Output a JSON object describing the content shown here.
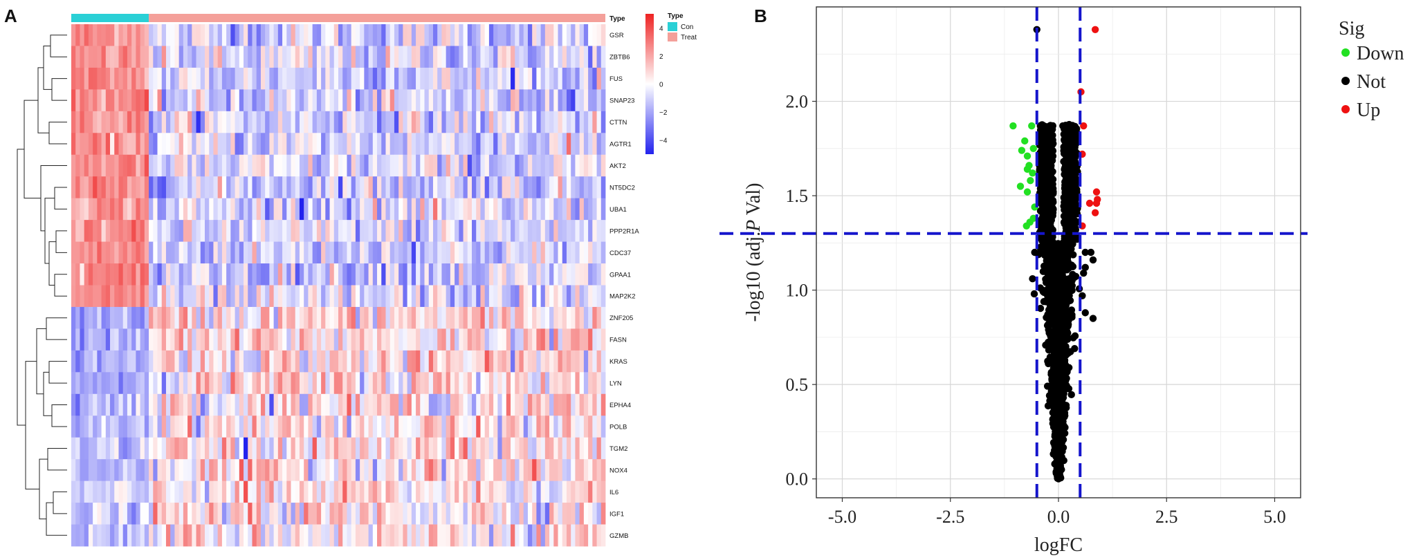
{
  "panel_a_label": "A",
  "panel_b_label": "B",
  "chart_data": [
    {
      "type": "heatmap",
      "annotation_title": "Type",
      "annotation_legend": {
        "title": "Type",
        "items": [
          {
            "label": "Con",
            "color": "#2ad0d6"
          },
          {
            "label": "Treat",
            "color": "#f4a09a"
          }
        ]
      },
      "groups": {
        "Con": 18,
        "Treat": 106
      },
      "rows": [
        "GSR",
        "ZBTB6",
        "FUS",
        "SNAP23",
        "CTTN",
        "AGTR1",
        "AKT2",
        "NT5DC2",
        "UBA1",
        "PPP2R1A",
        "CDC37",
        "GPAA1",
        "MAP2K2",
        "ZNF205",
        "FASN",
        "KRAS",
        "LYN",
        "EPHA4",
        "POLB",
        "TGM2",
        "NOX4",
        "IL6",
        "IGF1",
        "GZMB"
      ],
      "row_con_mean": [
        2.3,
        2.0,
        2.2,
        2.4,
        2.1,
        2.0,
        2.3,
        2.2,
        2.1,
        2.2,
        2.2,
        2.3,
        2.4,
        -1.6,
        -1.7,
        -1.5,
        -1.6,
        -1.3,
        -1.1,
        -1.2,
        -1.3,
        -1.0,
        -1.1,
        -1.2
      ],
      "colorbar": {
        "ticks": [
          4,
          2,
          0,
          -2,
          -4
        ],
        "min": -5,
        "max": 5,
        "high": "#ee2222",
        "mid": "#ffffff",
        "low": "#2222ee"
      }
    },
    {
      "type": "scatter",
      "xlabel": "logFC",
      "ylabel_prefix": "-log10 (adj.",
      "ylabel_italic": "P",
      "ylabel_suffix": " Val)",
      "xlim": [
        -5.6,
        5.6
      ],
      "ylim": [
        -0.1,
        2.5
      ],
      "xticks": [
        -5.0,
        -2.5,
        0.0,
        2.5,
        5.0
      ],
      "xtick_labels": [
        "-5.0",
        "-2.5",
        "0.0",
        "2.5",
        "5.0"
      ],
      "yticks": [
        0.0,
        0.5,
        1.0,
        1.5,
        2.0
      ],
      "ytick_labels": [
        "0.0",
        "0.5",
        "1.0",
        "1.5",
        "2.0"
      ],
      "grid": true,
      "thresholds": {
        "logFC": [
          -0.5,
          0.5
        ],
        "neglog10p": 1.3
      },
      "legend": {
        "title": "Sig",
        "items": [
          {
            "label": "Down",
            "color": "#22e022"
          },
          {
            "label": "Not",
            "color": "#000000"
          },
          {
            "label": "Up",
            "color": "#ee1111"
          }
        ]
      },
      "series": [
        {
          "name": "Down",
          "color": "#22e022",
          "points": [
            [
              -1.05,
              1.87
            ],
            [
              -0.85,
              1.74
            ],
            [
              -0.78,
              1.79
            ],
            [
              -0.72,
              1.71
            ],
            [
              -0.62,
              1.87
            ],
            [
              -0.68,
              1.66
            ],
            [
              -0.72,
              1.64
            ],
            [
              -0.65,
              1.58
            ],
            [
              -0.58,
              1.75
            ],
            [
              -0.6,
              1.62
            ],
            [
              -0.88,
              1.55
            ],
            [
              -0.72,
              1.52
            ],
            [
              -0.55,
              1.44
            ],
            [
              -0.66,
              1.36
            ],
            [
              -0.74,
              1.34
            ],
            [
              -0.58,
              1.38
            ]
          ]
        },
        {
          "name": "Up",
          "color": "#ee1111",
          "points": [
            [
              0.85,
              2.38
            ],
            [
              0.52,
              2.05
            ],
            [
              0.58,
              1.87
            ],
            [
              0.55,
              1.72
            ],
            [
              0.88,
              1.52
            ],
            [
              0.9,
              1.48
            ],
            [
              0.88,
              1.46
            ],
            [
              0.72,
              1.46
            ],
            [
              0.85,
              1.41
            ],
            [
              0.55,
              1.34
            ]
          ]
        },
        {
          "name": "Not",
          "color": "#000000",
          "points": [
            [
              -0.5,
              2.38
            ],
            [
              0.1,
              1.87
            ],
            [
              0.2,
              1.87
            ],
            [
              -0.42,
              1.87
            ],
            [
              -0.2,
              1.87
            ],
            [
              0.3,
              1.86
            ],
            [
              0.62,
              1.2
            ],
            [
              0.75,
              1.2
            ],
            [
              0.8,
              1.16
            ],
            [
              0.62,
              1.12
            ],
            [
              0.58,
              1.09
            ],
            [
              0.55,
              0.97
            ],
            [
              0.62,
              0.88
            ],
            [
              0.8,
              0.85
            ],
            [
              -0.55,
              1.2
            ],
            [
              -0.6,
              1.06
            ],
            [
              -0.56,
              0.98
            ]
          ]
        }
      ]
    }
  ]
}
